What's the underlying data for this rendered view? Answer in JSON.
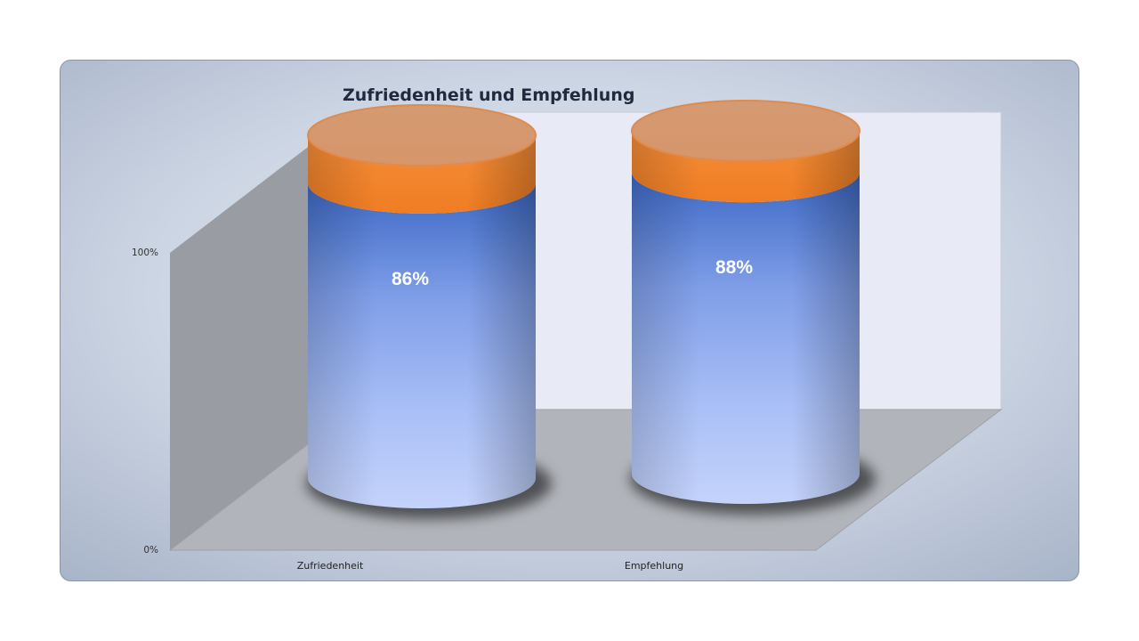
{
  "chart_data": {
    "type": "bar",
    "title": "Zufriedenheit und Empfehlung",
    "categories": [
      "Zufriedenheit",
      "Empfehlung"
    ],
    "series": [
      {
        "values": [
          0.86,
          0.88
        ],
        "color": "#4a78d0"
      },
      {
        "values": [
          0.14,
          0.12
        ],
        "color": "#f07f2a"
      }
    ],
    "data_labels": [
      "86%",
      "88%"
    ],
    "y_ticks": [
      "0%",
      "100%"
    ],
    "ylim": [
      0,
      1
    ],
    "stacked": "100%",
    "shape": "cylinder",
    "legend": "none",
    "grid": false
  },
  "colors": {
    "frame_background": "#b8c4d6",
    "back_wall": "#e8eaf6",
    "side_wall": "#9a9ca4",
    "floor": "#b1b4ba"
  }
}
